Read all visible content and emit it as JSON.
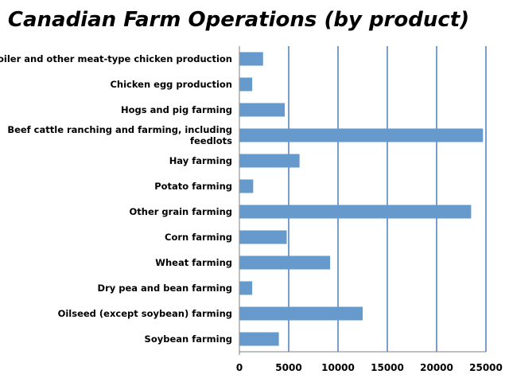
{
  "colors": {
    "bar": "#6699cc",
    "grid": "#4a7ebb",
    "axis": "#7f7f7f"
  },
  "chart_data": {
    "type": "bar",
    "orientation": "horizontal",
    "title": "Canadian Farm Operations (by product)",
    "xlabel": "",
    "ylabel": "",
    "xlim": [
      0,
      25000
    ],
    "xticks": [
      0,
      5000,
      10000,
      15000,
      20000,
      25000
    ],
    "grid": true,
    "legend": "none",
    "categories": [
      [
        "Broiler and other meat-type chicken production"
      ],
      [
        "Chicken egg production"
      ],
      [
        "Hogs and pig farming"
      ],
      [
        "Beef cattle ranching and farming, including",
        "feedlots"
      ],
      [
        "Hay farming"
      ],
      [
        "Potato farming"
      ],
      [
        "Other grain farming"
      ],
      [
        "Corn farming"
      ],
      [
        "Wheat farming"
      ],
      [
        "Dry pea and bean farming"
      ],
      [
        "Oilseed (except soybean) farming"
      ],
      [
        "Soybean farming"
      ]
    ],
    "values": [
      2400,
      1300,
      4600,
      24700,
      6100,
      1400,
      23500,
      4800,
      9200,
      1300,
      12500,
      4000
    ]
  }
}
